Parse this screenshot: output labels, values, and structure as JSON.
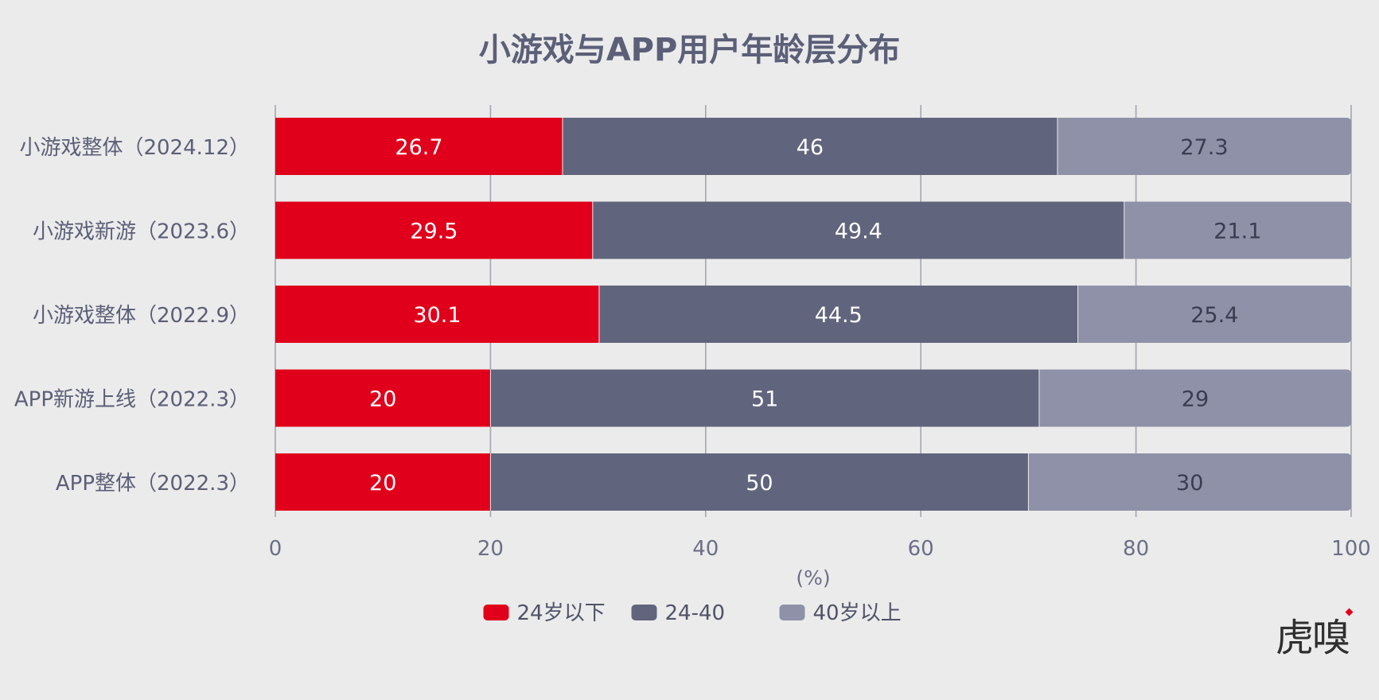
{
  "chart_data": {
    "type": "bar",
    "orientation": "horizontal",
    "stacked": true,
    "title": "小游戏与APP用户年龄层分布",
    "xlabel": "(%)",
    "ylabel": "",
    "xlim": [
      0,
      100
    ],
    "x_ticks": [
      "0",
      "20",
      "40",
      "60",
      "80",
      "100"
    ],
    "grid": "vertical",
    "legend_position": "bottom",
    "categories": [
      "小游戏整体（2024.12）",
      "小游戏新游（2023.6）",
      "小游戏整体（2022.9）",
      "APP新游上线（2022.3）",
      "APP整体（2022.3）"
    ],
    "series": [
      {
        "name": "24岁以下",
        "color": "#e0001b",
        "label_color": "#ffffff",
        "values": [
          26.7,
          29.5,
          30.1,
          20,
          20
        ]
      },
      {
        "name": "24-40",
        "color": "#60647c",
        "label_color": "#ffffff",
        "values": [
          46,
          49.4,
          44.5,
          51,
          50
        ]
      },
      {
        "name": "40岁以上",
        "color": "#8e91a7",
        "label_color": "#3a3d50",
        "values": [
          27.3,
          21.1,
          25.4,
          29,
          30
        ]
      }
    ]
  },
  "brand": {
    "logo_text": "虎嗅"
  }
}
